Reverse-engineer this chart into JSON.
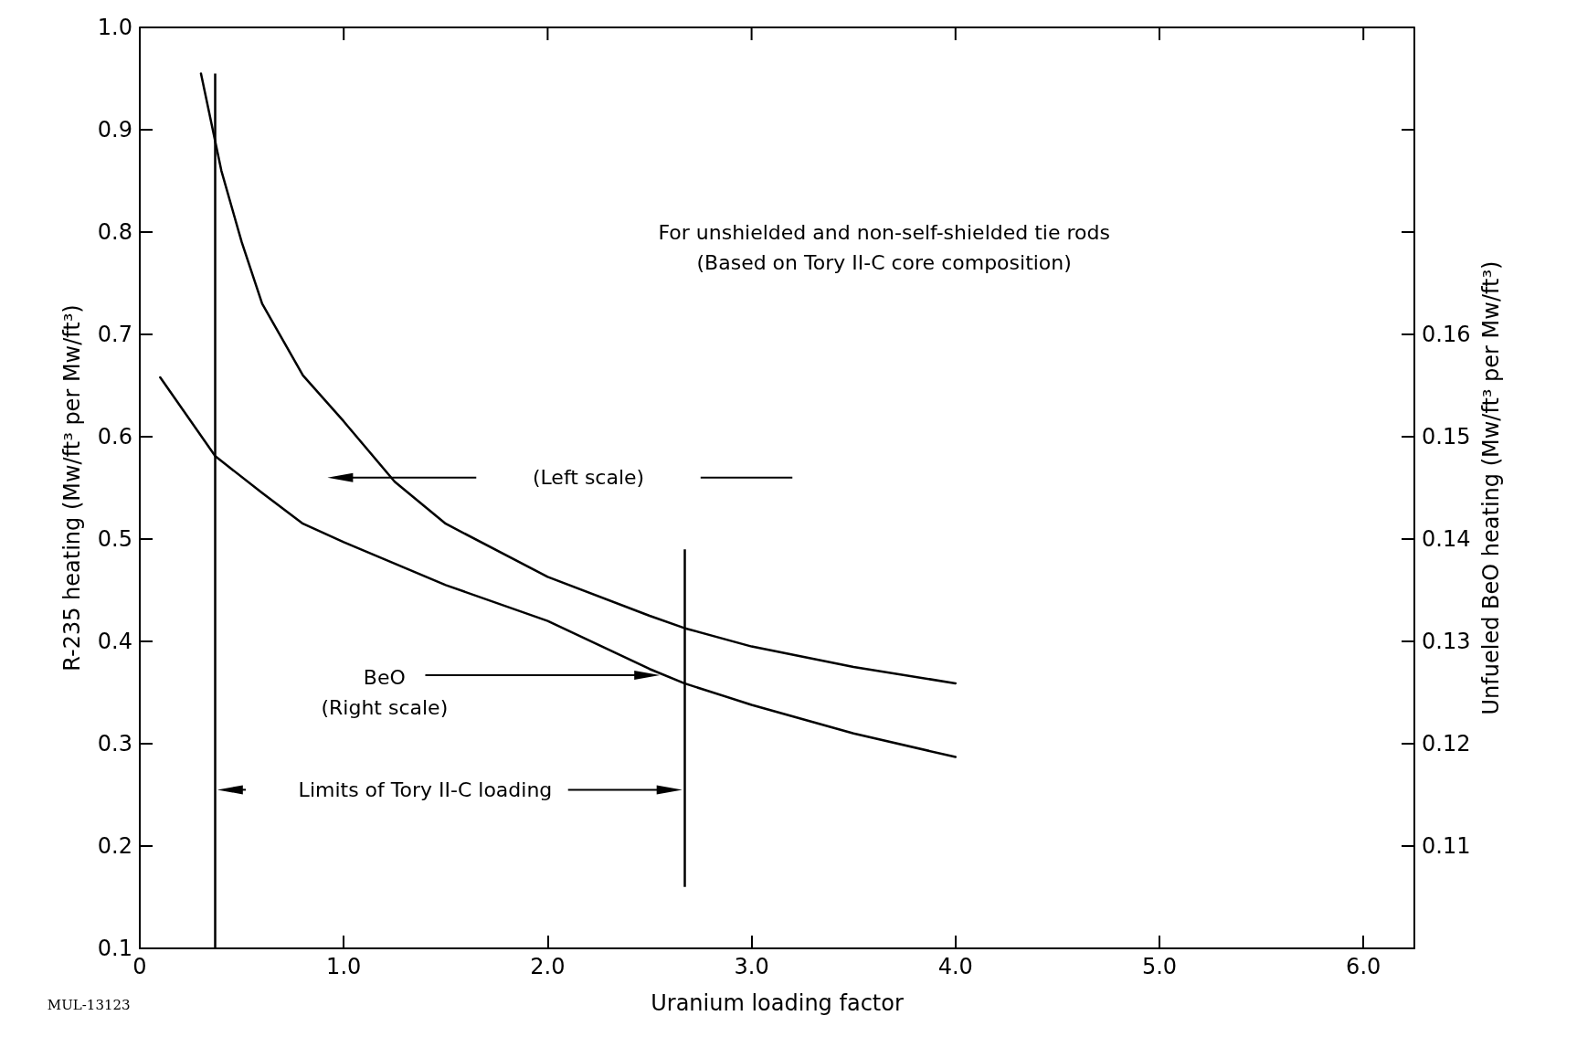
{
  "chart_data": {
    "type": "line",
    "xlabel": "Uranium loading factor",
    "ylabel": "R-235 heating (Mw/ft³ per Mw/ft³)",
    "y2label": "Unfueled BeO heating (Mw/ft³ per Mw/ft³)",
    "xlim": [
      0,
      6.25
    ],
    "xticks": [
      0,
      {
        "value": 1,
        "label": "1.0"
      },
      {
        "value": 2,
        "label": "2.0"
      },
      {
        "value": 3,
        "label": "3.0"
      },
      {
        "value": 4,
        "label": "4.0"
      },
      {
        "value": 5,
        "label": "5.0"
      },
      {
        "value": 6,
        "label": "6.0"
      }
    ],
    "ylim": [
      0.1,
      1.0
    ],
    "yticks": [
      0.1,
      0.2,
      0.3,
      0.4,
      0.5,
      0.6,
      0.7,
      0.8,
      0.9,
      {
        "value": 1.0,
        "label": "1.0"
      }
    ],
    "y2lim": [
      0.1,
      0.19
    ],
    "y2ticks": [
      0.11,
      0.12,
      0.13,
      0.14,
      0.15,
      0.16,
      {
        "value": 0.17,
        "label": null
      },
      {
        "value": 0.18,
        "label": null
      }
    ],
    "grid": false,
    "legend": false,
    "marker": "none",
    "line_style": "solid",
    "series": [
      {
        "color": "#000000",
        "x": [
          0.3,
          0.4,
          0.5,
          0.6,
          0.8,
          1.0,
          1.25,
          1.5,
          2.0,
          2.5,
          2.67,
          3.0,
          3.5,
          4.0
        ],
        "values": [
          0.955,
          0.86,
          0.79,
          0.73,
          0.66,
          0.615,
          0.556,
          0.515,
          0.463,
          0.425,
          0.413,
          0.395,
          0.375,
          0.359
        ]
      },
      {
        "name": "BeO",
        "color": "#000000",
        "axis": "y2",
        "x": [
          0.1,
          0.37,
          0.6,
          0.8,
          1.0,
          1.5,
          2.0,
          2.5,
          2.67,
          3.0,
          3.5,
          4.0
        ],
        "values": [
          0.1558,
          0.1481,
          0.1445,
          0.1415,
          0.1397,
          0.1355,
          0.132,
          0.1273,
          0.1259,
          0.1238,
          0.121,
          0.1187
        ]
      }
    ],
    "ref_lines": [
      {
        "axis": "x",
        "value": 0.37,
        "color": "#000000"
      },
      {
        "axis": "x",
        "value": 2.67,
        "color": "#000000"
      }
    ],
    "annotations": [
      "For unshielded and non-self-shielded tie rods",
      "(Based on Tory II-C core composition)",
      "(Left scale)",
      "(Right scale)",
      "Limits of Tory II-C loading",
      "MUL-13123"
    ]
  }
}
